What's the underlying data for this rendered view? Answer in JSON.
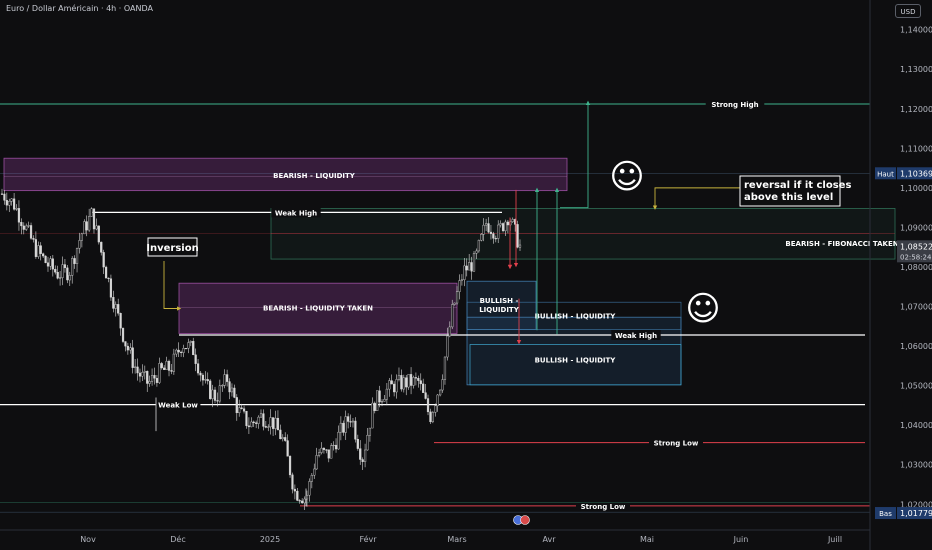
{
  "header": {
    "symbol": "Euro / Dollar Américain · 4h · OANDA",
    "currency_button": "USD"
  },
  "colors": {
    "background": "#0e0e10",
    "candle": "#d8d8d8",
    "green_line": "#3fb28c",
    "red_line": "#e0404c",
    "white_line": "#ffffff",
    "purple_zone": "#8a3d8f",
    "blue_zone": "#3a6d9a"
  },
  "chart_data": {
    "type": "candlestick",
    "x_tick_labels": [
      "Nov",
      "Déc",
      "2025",
      "Févr",
      "Mars",
      "Avr",
      "Mai",
      "Juin",
      "Juill"
    ],
    "y_tick_labels": [
      "1,14000",
      "1,13000",
      "1,12000",
      "1,11000",
      "1,10000",
      "1,09000",
      "1,08000",
      "1,07000",
      "1,06000",
      "1,05000",
      "1,04000",
      "1,03000",
      "1,02000"
    ],
    "y_ticks": [
      1.14,
      1.13,
      1.12,
      1.11,
      1.1,
      1.09,
      1.08,
      1.07,
      1.06,
      1.05,
      1.04,
      1.03,
      1.02
    ],
    "ylim": [
      1.0135,
      1.1475
    ],
    "price_badges": [
      {
        "label": "Haut",
        "value": "1,10369",
        "price": 1.10369,
        "style": "blue"
      },
      {
        "label": "",
        "value": "1,08522",
        "price": 1.08522,
        "style": "gray",
        "sub": "02:58:24"
      },
      {
        "label": "Bas",
        "value": "1,01779",
        "price": 1.01779,
        "style": "blue"
      }
    ],
    "price_path": [
      1.0985,
      1.0962,
      1.0905,
      1.0845,
      1.0808,
      1.0782,
      1.079,
      1.088,
      1.0935,
      1.0815,
      1.0705,
      1.0605,
      1.0535,
      1.0505,
      1.0535,
      1.0545,
      1.0608,
      1.059,
      1.05,
      1.047,
      1.0518,
      1.0435,
      1.04,
      1.0422,
      1.041,
      1.036,
      1.0232,
      1.0215,
      1.0332,
      1.0325,
      1.038,
      1.0425,
      1.0315,
      1.0455,
      1.0485,
      1.0504,
      1.0508,
      1.051,
      1.042,
      1.0512,
      1.069,
      1.079,
      1.0815,
      1.0912,
      1.0885,
      1.0932,
      1.0852
    ],
    "levels": [
      {
        "label": "Strong High",
        "price": 1.1212,
        "color": "green"
      },
      {
        "label": "Weak High",
        "price": 1.0938,
        "color": "white"
      },
      {
        "label": "Weak High",
        "price": 1.0628,
        "color": "white"
      },
      {
        "label": "Weak Low",
        "price": 1.0452,
        "color": "white"
      },
      {
        "label": "Strong Low",
        "price": 1.0356,
        "color": "red"
      },
      {
        "label": "Strong Low",
        "price": 1.0196,
        "color": "red"
      }
    ],
    "zones": [
      {
        "label": "BEARISH - LIQUIDITY",
        "top": 1.1075,
        "bottom": 1.0993,
        "style": "purple"
      },
      {
        "label": "BEARISH - LIQUIDITY TAKEN",
        "top": 1.0759,
        "bottom": 1.0632,
        "style": "purple"
      },
      {
        "label": "BEARISH - FIBONACCI TAKEN",
        "top": 1.0948,
        "bottom": 1.082,
        "style": "green"
      },
      {
        "label": "BULLISH - LIQUIDITY",
        "top": 1.0764,
        "bottom": 1.0642,
        "style": "blue"
      },
      {
        "label": "BULLISH - LIQUIDITY",
        "top": 1.0673,
        "bottom": 1.0502,
        "style": "blue"
      }
    ],
    "annotations": [
      {
        "text": "Inversion",
        "type": "box"
      },
      {
        "text": "reversal if it closes above this level",
        "type": "box"
      },
      {
        "text": "BULLISH - LIQUIDITY",
        "type": "box"
      },
      {
        "text": "☺",
        "type": "emoji"
      },
      {
        "text": "☺",
        "type": "emoji"
      }
    ]
  }
}
